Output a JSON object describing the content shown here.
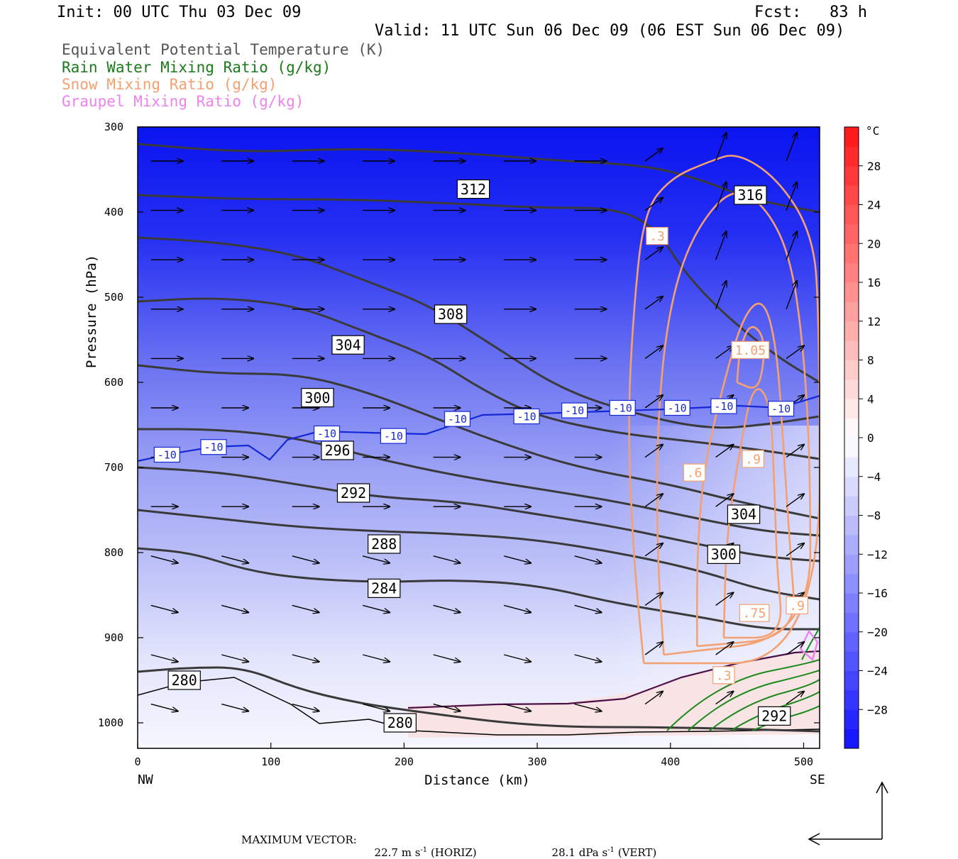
{
  "header": {
    "init": "Init: 00 UTC Thu 03 Dec 09",
    "fcst": "Fcst:   83 h",
    "valid": "Valid: 11 UTC Sun 06 Dec 09 (06 EST Sun 06 Dec 09)"
  },
  "field_titles": [
    {
      "text": "Equivalent Potential Temperature (K)",
      "color": "#555555"
    },
    {
      "text": "Rain Water Mixing Ratio (g/kg)",
      "color": "#1b7a1b"
    },
    {
      "text": "Snow Mixing Ratio (g/kg)",
      "color": "#f4a070"
    },
    {
      "text": "Graupel Mixing Ratio (g/kg)",
      "color": "#ee82ee"
    }
  ],
  "footer": {
    "max_vector_label": "MAXIMUM VECTOR:",
    "horiz_value": "22.7 m s",
    "horiz_exp": "-1",
    "horiz_tag": "(HORIZ)",
    "vert_value": "28.1 dPa s",
    "vert_exp": "-1",
    "vert_tag": "(VERT)"
  },
  "chart_data": {
    "type": "heatmap",
    "xlabel": "Distance (km)",
    "ylabel": "Pressure (hPa)",
    "xlim": [
      0,
      512
    ],
    "ylim": [
      1030,
      300
    ],
    "x_ticks": [
      0,
      100,
      200,
      300,
      400,
      500
    ],
    "y_ticks": [
      300,
      400,
      500,
      600,
      700,
      800,
      900,
      1000
    ],
    "x_end_labels": {
      "left": "NW",
      "right": "SE"
    },
    "colorbar": {
      "unit": "°C",
      "ticks": [
        28,
        24,
        20,
        16,
        12,
        8,
        4,
        0,
        -4,
        -8,
        -12,
        -16,
        -20,
        -24,
        -28
      ],
      "range": [
        -32,
        32
      ]
    },
    "theta_e_contours": [
      {
        "value": 280,
        "points": [
          [
            0,
            940
          ],
          [
            40,
            935
          ],
          [
            80,
            935
          ],
          [
            120,
            960
          ],
          [
            160,
            975
          ],
          [
            200,
            985
          ],
          [
            300,
            1005
          ],
          [
            400,
            1005
          ],
          [
            512,
            1010
          ]
        ]
      },
      {
        "value": 284,
        "points": [
          [
            0,
            795
          ],
          [
            40,
            800
          ],
          [
            80,
            820
          ],
          [
            120,
            830
          ],
          [
            180,
            835
          ],
          [
            240,
            832
          ],
          [
            300,
            838
          ],
          [
            360,
            860
          ],
          [
            420,
            875
          ],
          [
            470,
            890
          ],
          [
            512,
            890
          ]
        ]
      },
      {
        "value": 288,
        "points": [
          [
            0,
            750
          ],
          [
            60,
            760
          ],
          [
            120,
            770
          ],
          [
            180,
            775
          ],
          [
            240,
            778
          ],
          [
            300,
            785
          ],
          [
            360,
            800
          ],
          [
            420,
            820
          ],
          [
            470,
            845
          ],
          [
            512,
            855
          ]
        ]
      },
      {
        "value": 292,
        "points": [
          [
            0,
            700
          ],
          [
            60,
            705
          ],
          [
            120,
            720
          ],
          [
            180,
            735
          ],
          [
            240,
            740
          ],
          [
            300,
            755
          ],
          [
            360,
            770
          ],
          [
            420,
            790
          ],
          [
            470,
            805
          ],
          [
            512,
            810
          ]
        ]
      },
      {
        "value": 296,
        "points": [
          [
            0,
            655
          ],
          [
            60,
            655
          ],
          [
            120,
            665
          ],
          [
            180,
            690
          ],
          [
            240,
            710
          ],
          [
            300,
            725
          ],
          [
            360,
            740
          ],
          [
            420,
            760
          ],
          [
            470,
            775
          ],
          [
            512,
            780
          ]
        ]
      },
      {
        "value": 300,
        "points": [
          [
            0,
            580
          ],
          [
            60,
            590
          ],
          [
            120,
            590
          ],
          [
            170,
            610
          ],
          [
            220,
            640
          ],
          [
            270,
            670
          ],
          [
            330,
            700
          ],
          [
            400,
            720
          ],
          [
            450,
            740
          ],
          [
            512,
            760
          ]
        ]
      },
      {
        "value": 304,
        "points": [
          [
            0,
            505
          ],
          [
            60,
            500
          ],
          [
            120,
            510
          ],
          [
            170,
            540
          ],
          [
            220,
            570
          ],
          [
            260,
            610
          ],
          [
            300,
            640
          ],
          [
            360,
            660
          ],
          [
            420,
            670
          ],
          [
            470,
            680
          ],
          [
            512,
            690
          ]
        ]
      },
      {
        "value": 308,
        "points": [
          [
            0,
            430
          ],
          [
            60,
            435
          ],
          [
            120,
            450
          ],
          [
            170,
            480
          ],
          [
            220,
            510
          ],
          [
            270,
            560
          ],
          [
            320,
            610
          ],
          [
            380,
            640
          ],
          [
            430,
            655
          ],
          [
            470,
            650
          ],
          [
            512,
            640
          ]
        ]
      },
      {
        "value": 312,
        "points": [
          [
            0,
            380
          ],
          [
            80,
            385
          ],
          [
            160,
            385
          ],
          [
            240,
            390
          ],
          [
            300,
            395
          ],
          [
            360,
            395
          ],
          [
            390,
            420
          ],
          [
            410,
            470
          ],
          [
            440,
            520
          ],
          [
            480,
            570
          ],
          [
            512,
            600
          ]
        ]
      },
      {
        "value": 316,
        "points": [
          [
            0,
            320
          ],
          [
            80,
            330
          ],
          [
            160,
            325
          ],
          [
            240,
            330
          ],
          [
            320,
            340
          ],
          [
            380,
            345
          ],
          [
            420,
            360
          ],
          [
            460,
            385
          ],
          [
            512,
            400
          ]
        ]
      }
    ],
    "snow_contours": [
      {
        "value": 0.3,
        "points": [
          [
            380,
            930
          ],
          [
            372,
            800
          ],
          [
            368,
            650
          ],
          [
            372,
            520
          ],
          [
            380,
            400
          ],
          [
            400,
            360
          ],
          [
            430,
            340
          ],
          [
            450,
            330
          ],
          [
            480,
            360
          ],
          [
            505,
            420
          ],
          [
            512,
            500
          ],
          [
            512,
            930
          ]
        ]
      },
      {
        "value": 0.6,
        "points": [
          [
            395,
            920
          ],
          [
            390,
            800
          ],
          [
            390,
            650
          ],
          [
            398,
            520
          ],
          [
            415,
            430
          ],
          [
            445,
            370
          ],
          [
            470,
            390
          ],
          [
            490,
            450
          ],
          [
            500,
            560
          ],
          [
            505,
            700
          ],
          [
            505,
            900
          ]
        ]
      },
      {
        "value": 0.75,
        "points": [
          [
            420,
            910
          ],
          [
            420,
            800
          ],
          [
            425,
            700
          ],
          [
            440,
            600
          ],
          [
            455,
            520
          ],
          [
            470,
            500
          ],
          [
            480,
            560
          ],
          [
            485,
            680
          ],
          [
            490,
            800
          ],
          [
            495,
            900
          ]
        ]
      },
      {
        "value": 0.9,
        "points": [
          [
            440,
            900
          ],
          [
            442,
            780
          ],
          [
            452,
            680
          ],
          [
            462,
            600
          ],
          [
            475,
            620
          ],
          [
            478,
            720
          ],
          [
            480,
            820
          ],
          [
            485,
            900
          ]
        ]
      },
      {
        "value": 1.05,
        "points": [
          [
            450,
            600
          ],
          [
            452,
            560
          ],
          [
            460,
            530
          ],
          [
            470,
            545
          ],
          [
            470,
            580
          ],
          [
            465,
            610
          ]
        ]
      }
    ],
    "contour_labels_theta_e": [
      {
        "text": "280",
        "x": 35,
        "p": 950
      },
      {
        "text": "280",
        "x": 197,
        "p": 1000
      },
      {
        "text": "284",
        "x": 185,
        "p": 842
      },
      {
        "text": "288",
        "x": 185,
        "p": 790
      },
      {
        "text": "292",
        "x": 162,
        "p": 730
      },
      {
        "text": "296",
        "x": 150,
        "p": 680
      },
      {
        "text": "300",
        "x": 135,
        "p": 618
      },
      {
        "text": "304",
        "x": 158,
        "p": 556
      },
      {
        "text": "308",
        "x": 235,
        "p": 520
      },
      {
        "text": "312",
        "x": 252,
        "p": 373
      },
      {
        "text": "316",
        "x": 460,
        "p": 380
      },
      {
        "text": "304",
        "x": 455,
        "p": 755
      },
      {
        "text": "300",
        "x": 440,
        "p": 802
      },
      {
        "text": "292",
        "x": 478,
        "p": 992
      }
    ],
    "contour_labels_temp": [
      {
        "text": "-10",
        "x": 22,
        "p": 685
      },
      {
        "text": "-10",
        "x": 57,
        "p": 676
      },
      {
        "text": "-10",
        "x": 142,
        "p": 660
      },
      {
        "text": "-10",
        "x": 192,
        "p": 663
      },
      {
        "text": "-10",
        "x": 240,
        "p": 643
      },
      {
        "text": "-10",
        "x": 292,
        "p": 640
      },
      {
        "text": "-10",
        "x": 328,
        "p": 633
      },
      {
        "text": "-10",
        "x": 364,
        "p": 630
      },
      {
        "text": "-10",
        "x": 405,
        "p": 630
      },
      {
        "text": "-10",
        "x": 440,
        "p": 628
      },
      {
        "text": "-10",
        "x": 483,
        "p": 631
      }
    ],
    "contour_labels_snow": [
      {
        "text": ".3",
        "x": 390,
        "p": 428
      },
      {
        "text": "1.05",
        "x": 460,
        "p": 562
      },
      {
        "text": ".9",
        "x": 462,
        "p": 690
      },
      {
        "text": ".6",
        "x": 418,
        "p": 706
      },
      {
        "text": ".75",
        "x": 463,
        "p": 871
      },
      {
        "text": ".3",
        "x": 440,
        "p": 944
      },
      {
        "text": ".9",
        "x": 495,
        "p": 862
      }
    ]
  }
}
